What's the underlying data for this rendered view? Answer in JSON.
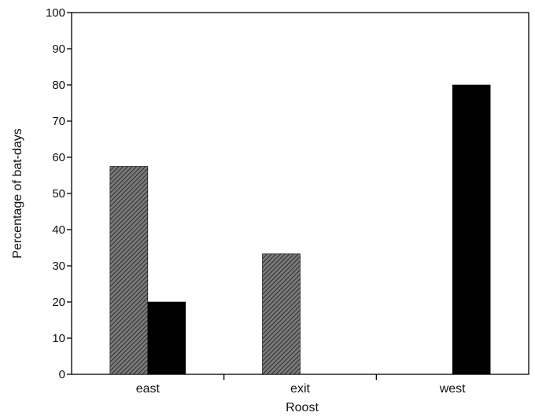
{
  "chart_data": {
    "type": "bar",
    "title": "",
    "xlabel": "Roost",
    "ylabel": "Percentage of bat-days",
    "categories": [
      "east",
      "exit",
      "west"
    ],
    "ylim": [
      0,
      100
    ],
    "yticks": [
      0,
      10,
      20,
      30,
      40,
      50,
      60,
      70,
      80,
      90,
      100
    ],
    "grid": false,
    "legend": "none",
    "series": [
      {
        "values": [
          57.5,
          33.3,
          0
        ],
        "color": "#555555",
        "pattern": "hatched"
      },
      {
        "values": [
          20,
          0,
          80
        ],
        "color": "#000000",
        "pattern": "solid"
      }
    ]
  }
}
